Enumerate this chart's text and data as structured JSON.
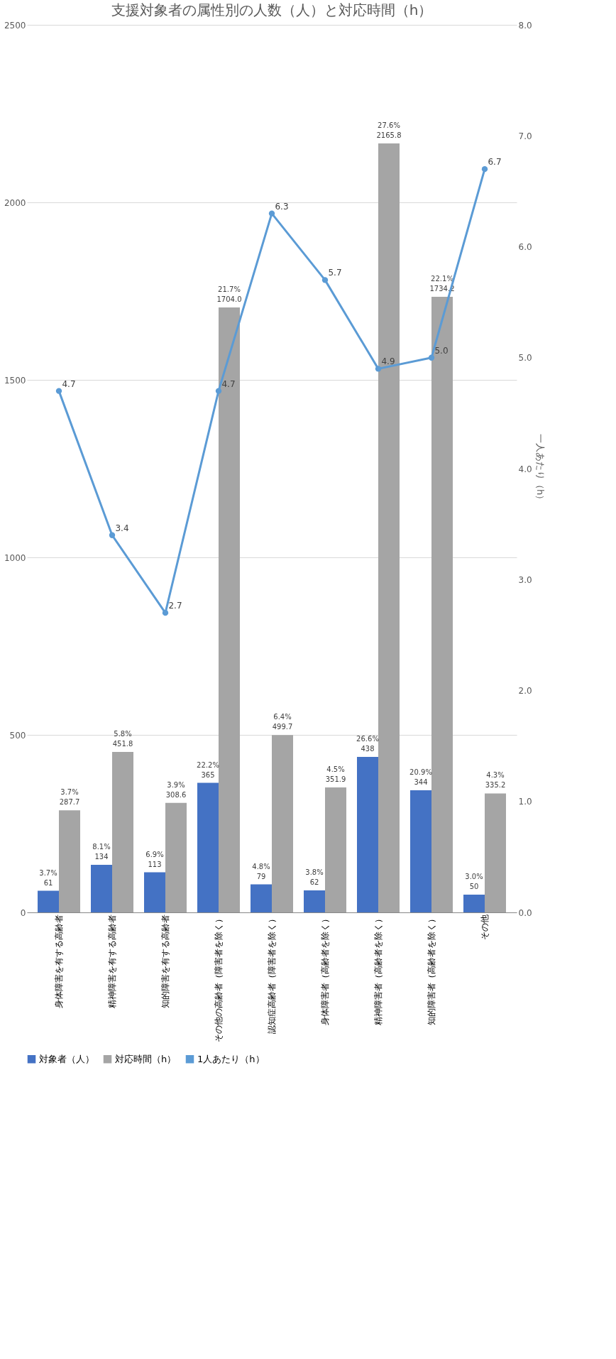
{
  "chart_data": {
    "type": "bar",
    "title": "支援対象者の属性別の人数（人）と対応時間（h）",
    "y2label": "一人あたり（h）",
    "categories": [
      "身体障害を有する高齢者",
      "精神障害を有する高齢者",
      "知的障害を有する高齢者",
      "その他の高齢者（障害者を除く）",
      "認知症高齢者（障害者を除く）",
      "身体障害者（高齢者を除く）",
      "精神障害者（高齢者を除く）",
      "知的障害者（高齢者を除く）",
      "その他"
    ],
    "series": [
      {
        "name": "対象者（人）",
        "color": "#4472c4",
        "values": [
          61,
          134,
          113,
          365,
          79,
          62,
          438,
          344,
          50
        ],
        "value_labels": [
          "61",
          "134",
          "113",
          "365",
          "79",
          "62",
          "438",
          "344",
          "50"
        ]
      },
      {
        "name": "対応時間（h）",
        "color": "#a5a5a5",
        "values": [
          287.7,
          451.8,
          308.6,
          1704.0,
          499.7,
          351.9,
          2165.8,
          1734.2,
          335.2
        ],
        "value_labels": [
          "287.7",
          "451.8",
          "308.6",
          "1704.0",
          "499.7",
          "351.9",
          "2165.8",
          "1734.2",
          "335.2"
        ]
      },
      {
        "name": "1人あたり（h）",
        "type": "line",
        "axis": "y2",
        "color": "#5b9bd5",
        "marker": "circle",
        "values": [
          4.7,
          3.4,
          2.7,
          4.7,
          6.3,
          5.7,
          4.9,
          5.0,
          6.7
        ],
        "value_labels": [
          "4.7",
          "3.4",
          "2.7",
          "4.7",
          "6.3",
          "5.7",
          "4.9",
          "5.0",
          "6.7"
        ]
      }
    ],
    "ylim": [
      0,
      2500
    ],
    "yticks": [
      0,
      500,
      1000,
      1500,
      2000,
      2500
    ],
    "y2lim": [
      0,
      8
    ],
    "y2ticks": [
      {
        "value": 0,
        "label": "0.0"
      },
      {
        "value": 1,
        "label": "1.0"
      },
      {
        "value": 2,
        "label": "2.0"
      },
      {
        "value": 3,
        "label": "3.0"
      },
      {
        "value": 4,
        "label": "4.0"
      },
      {
        "value": 5,
        "label": "5.0"
      },
      {
        "value": 6,
        "label": "6.0"
      },
      {
        "value": 7,
        "label": "7.0"
      },
      {
        "value": 8,
        "label": "8.0"
      }
    ],
    "grid": "y",
    "legend": "bottom",
    "annotations": [
      {
        "text": "3.7%",
        "x": "身体障害を有する高齢者",
        "y": 61
      },
      {
        "text": "8.1%",
        "x": "精神障害を有する高齢者",
        "y": 134
      },
      {
        "text": "6.9%",
        "x": "知的障害を有する高齢者",
        "y": 113
      },
      {
        "text": "22.2%",
        "x": "その他の高齢者（障害者を除く）",
        "y": 365
      },
      {
        "text": "4.8%",
        "x": "認知症高齢者（障害者を除く）",
        "y": 79
      },
      {
        "text": "3.8%",
        "x": "身体障害者（高齢者を除く）",
        "y": 62
      },
      {
        "text": "26.6%",
        "x": "精神障害者（高齢者を除く）",
        "y": 438
      },
      {
        "text": "20.9%",
        "x": "知的障害者（高齢者を除く）",
        "y": 344
      },
      {
        "text": "3.0%",
        "x": "その他",
        "y": 50
      },
      {
        "text": "3.7%",
        "x": "身体障害を有する高齢者",
        "y": 287.7
      },
      {
        "text": "5.8%",
        "x": "精神障害を有する高齢者",
        "y": 451.8
      },
      {
        "text": "3.9%",
        "x": "知的障害を有する高齢者",
        "y": 308.6
      },
      {
        "text": "21.7%",
        "x": "その他の高齢者（障害者を除く）",
        "y": 1704.0
      },
      {
        "text": "6.4%",
        "x": "認知症高齢者（障害者を除く）",
        "y": 499.7
      },
      {
        "text": "4.5%",
        "x": "身体障害者（高齢者を除く）",
        "y": 351.9
      },
      {
        "text": "27.6%",
        "x": "精神障害者（高齢者を除く）",
        "y": 2165.8
      },
      {
        "text": "22.1%",
        "x": "知的障害者（高齢者を除く）",
        "y": 1734.2
      },
      {
        "text": "4.3%",
        "x": "その他",
        "y": 335.2
      }
    ]
  }
}
